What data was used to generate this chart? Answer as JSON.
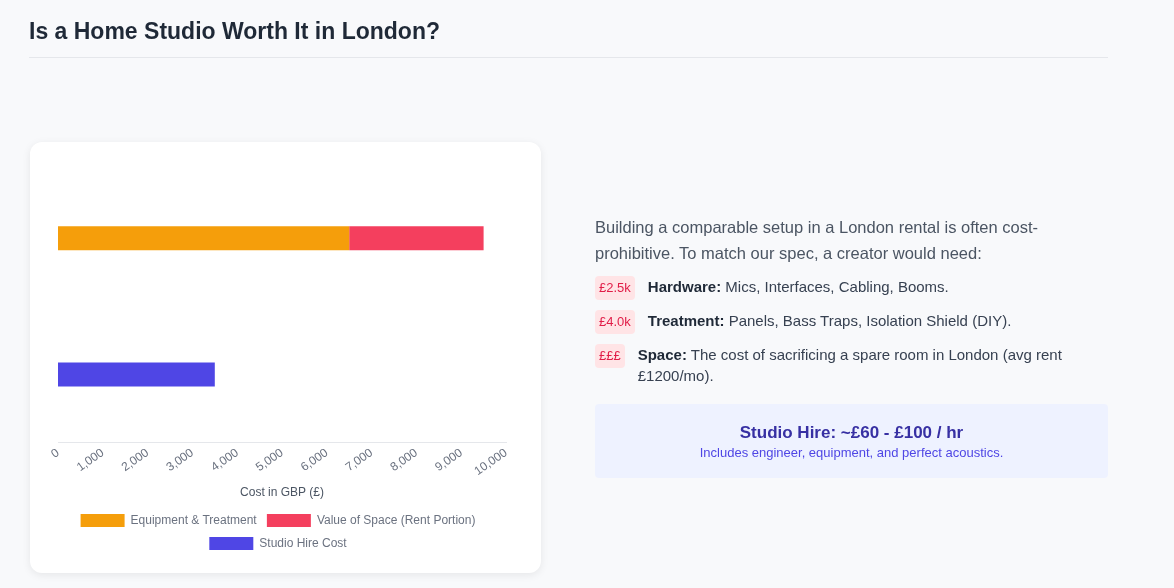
{
  "chart_data": {
    "type": "bar",
    "orientation": "horizontal",
    "stacked": true,
    "title": "Is a Home Studio Worth It in London?",
    "xlabel": "Cost in GBP (£)",
    "categories": [
      null,
      null
    ],
    "series": [
      {
        "name": "Equipment & Treatment",
        "color": "#f59e0b",
        "values": [
          6500,
          null
        ]
      },
      {
        "name": "Value of Space (Rent Portion)",
        "color": "#f43f5e",
        "values": [
          3000,
          null
        ]
      },
      {
        "name": "Studio Hire Cost",
        "color": "#4f46e5",
        "values": [
          null,
          3500
        ]
      }
    ],
    "xlim": [
      0,
      10000
    ],
    "xticks": [
      0,
      {
        "value": 1000,
        "label": "1,000"
      },
      {
        "value": 2000,
        "label": "2,000"
      },
      {
        "value": 3000,
        "label": "3,000"
      },
      {
        "value": 4000,
        "label": "4,000"
      },
      {
        "value": 5000,
        "label": "5,000"
      },
      {
        "value": 6000,
        "label": "6,000"
      },
      {
        "value": 7000,
        "label": "7,000"
      },
      {
        "value": 8000,
        "label": "8,000"
      },
      {
        "value": 9000,
        "label": "9,000"
      },
      {
        "value": 10000,
        "label": "10,000"
      }
    ],
    "grid": false,
    "legend": "bottom",
    "tick_labels": "x",
    "annotations": [
      "Building a comparable setup in a London rental is often cost-prohibitive. To match our spec, a creator would need:",
      "£2.5k",
      "Hardware: Mics, Interfaces, Cabling, Booms.",
      "£4.0k",
      "Treatment: Panels, Bass Traps, Isolation Shield (DIY).",
      "£££",
      "Space: The cost of sacrificing a spare room in London (avg rent £1200/mo).",
      "Studio Hire: ~£60 - £100 / hr",
      "Includes engineer, equipment, and perfect acoustics."
    ]
  }
}
